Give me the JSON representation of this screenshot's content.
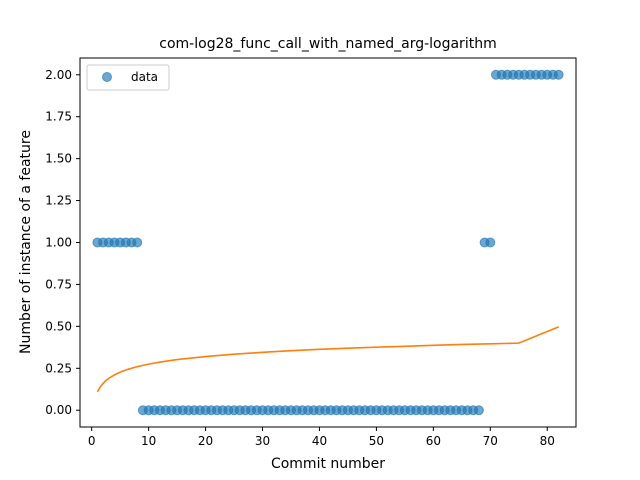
{
  "colors": {
    "data_points": "#1f77b4",
    "fit_line": "#ff7f0e",
    "axes": "#000000",
    "background": "#ffffff"
  },
  "chart_data": {
    "type": "scatter",
    "title": "com-log28_func_call_with_named_arg-logarithm",
    "xlabel": "Commit number",
    "ylabel": "Number of instance of a feature",
    "xlim": [
      -2.05,
      85.05
    ],
    "ylim": [
      -0.1,
      2.1
    ],
    "grid": false,
    "legend": {
      "position": "upper-left",
      "entries": [
        "data"
      ]
    },
    "xticks": [
      0,
      10,
      20,
      30,
      40,
      50,
      60,
      70,
      80
    ],
    "xtick_labels": [
      "0",
      "10",
      "20",
      "30",
      "40",
      "50",
      "60",
      "70",
      "80"
    ],
    "yticks": [
      0.0,
      0.25,
      0.5,
      0.75,
      1.0,
      1.25,
      1.5,
      1.75,
      2.0
    ],
    "ytick_labels": [
      "0.00",
      "0.25",
      "0.50",
      "0.75",
      "1.00",
      "1.25",
      "1.50",
      "1.75",
      "2.00"
    ],
    "series": [
      {
        "name": "data",
        "kind": "scatter",
        "x": [
          1,
          2,
          3,
          4,
          5,
          6,
          7,
          8,
          9,
          10,
          11,
          12,
          13,
          14,
          15,
          16,
          17,
          18,
          19,
          20,
          21,
          22,
          23,
          24,
          25,
          26,
          27,
          28,
          29,
          30,
          31,
          32,
          33,
          34,
          35,
          36,
          37,
          38,
          39,
          40,
          41,
          42,
          43,
          44,
          45,
          46,
          47,
          48,
          49,
          50,
          51,
          52,
          53,
          54,
          55,
          56,
          57,
          58,
          59,
          60,
          61,
          62,
          63,
          64,
          65,
          66,
          67,
          68,
          69,
          70,
          71,
          72,
          73,
          74,
          75,
          76,
          77,
          78,
          79,
          80,
          81,
          82
        ],
        "y": [
          1,
          1,
          1,
          1,
          1,
          1,
          1,
          1,
          0,
          0,
          0,
          0,
          0,
          0,
          0,
          0,
          0,
          0,
          0,
          0,
          0,
          0,
          0,
          0,
          0,
          0,
          0,
          0,
          0,
          0,
          0,
          0,
          0,
          0,
          0,
          0,
          0,
          0,
          0,
          0,
          0,
          0,
          0,
          0,
          0,
          0,
          0,
          0,
          0,
          0,
          0,
          0,
          0,
          0,
          0,
          0,
          0,
          0,
          0,
          0,
          0,
          0,
          0,
          0,
          0,
          0,
          0,
          0,
          1,
          1,
          2,
          2,
          2,
          2,
          2,
          2,
          2,
          2,
          2,
          2,
          2,
          2
        ]
      },
      {
        "kind": "line",
        "x": [
          1,
          1.5,
          2,
          2.5,
          3,
          4,
          5,
          6,
          8,
          10,
          12,
          15,
          20,
          25,
          30,
          35,
          40,
          45,
          50,
          55,
          60,
          65,
          70,
          75,
          82
        ],
        "y": [
          0.11,
          0.138,
          0.16,
          0.177,
          0.19,
          0.211,
          0.227,
          0.24,
          0.26,
          0.275,
          0.287,
          0.302,
          0.32,
          0.334,
          0.345,
          0.355,
          0.363,
          0.37,
          0.376,
          0.381,
          0.387,
          0.392,
          0.396,
          0.4,
          0.497
        ]
      }
    ]
  }
}
